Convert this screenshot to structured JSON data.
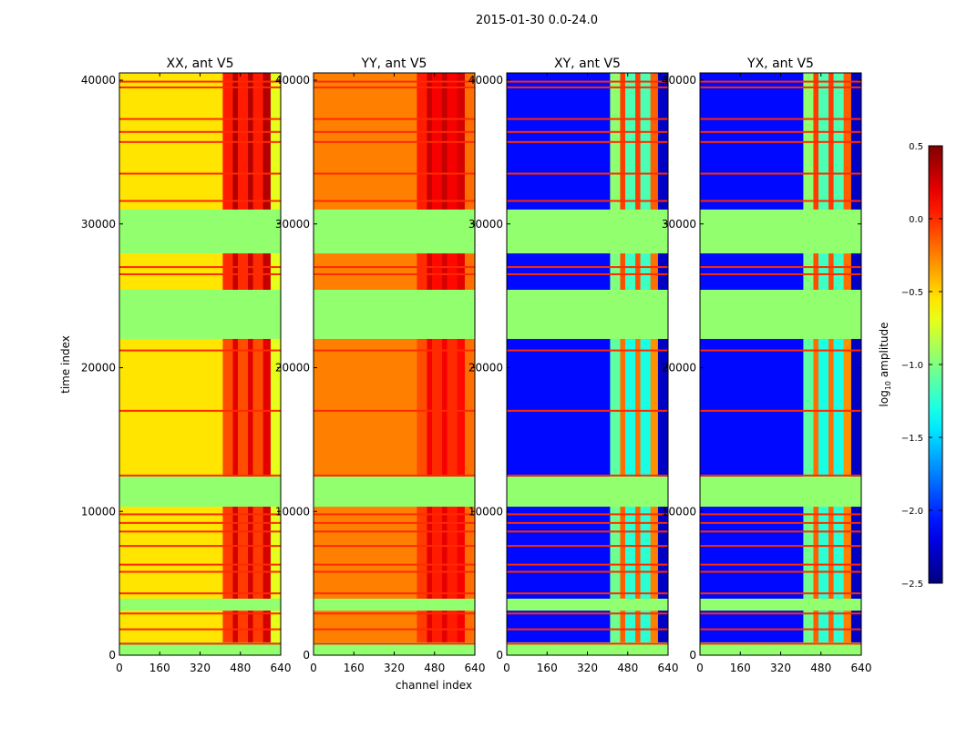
{
  "chart_data": {
    "type": "heatmap",
    "title": "2015-01-30 0.0-24.0",
    "xlabel": "channel index",
    "ylabel": "time index",
    "xlim": [
      0,
      640
    ],
    "ylim": [
      0,
      40500
    ],
    "xticks": [
      0,
      160,
      320,
      480,
      640
    ],
    "yticks": [
      0,
      10000,
      20000,
      30000,
      40000
    ],
    "colorbar": {
      "label_main": "log",
      "label_sub": "10",
      "label_rest": " amplitude",
      "vmin": -2.5,
      "vmax": 0.5,
      "ticks": [
        "0.5",
        "0.0",
        "−0.5",
        "−1.0",
        "−1.5",
        "−2.0",
        "−2.5"
      ],
      "tick_values": [
        0.5,
        0.0,
        -0.5,
        -1.0,
        -1.5,
        -2.0,
        -2.5
      ],
      "colormap": "jet"
    },
    "channel_segments": [
      [
        0,
        410
      ],
      [
        410,
        450
      ],
      [
        450,
        470
      ],
      [
        470,
        510
      ],
      [
        510,
        530
      ],
      [
        530,
        570
      ],
      [
        570,
        600
      ],
      [
        600,
        640
      ]
    ],
    "time_bands": [
      {
        "start": 31000,
        "end": 40500,
        "kind": "data",
        "boost": 0.15
      },
      {
        "start": 27950,
        "end": 31000,
        "kind": "flagged"
      },
      {
        "start": 25420,
        "end": 27950,
        "kind": "data",
        "boost": 0.1
      },
      {
        "start": 22000,
        "end": 25420,
        "kind": "flagged"
      },
      {
        "start": 12425,
        "end": 22000,
        "kind": "data",
        "boost": 0.0
      },
      {
        "start": 10330,
        "end": 12425,
        "kind": "flagged"
      },
      {
        "start": 3930,
        "end": 10330,
        "kind": "data",
        "boost": 0.05
      },
      {
        "start": 3100,
        "end": 3930,
        "kind": "flagged"
      },
      {
        "start": 890,
        "end": 3100,
        "kind": "data",
        "boost": 0.05
      },
      {
        "start": 0,
        "end": 890,
        "kind": "flagged"
      }
    ],
    "flagged_value": -0.95,
    "stripe_times": [
      39900,
      39500,
      37300,
      36400,
      35700,
      33500,
      31600,
      27000,
      26500,
      21200,
      17000,
      12500,
      9800,
      9200,
      8600,
      7600,
      6300,
      5800,
      4300,
      2900,
      1800,
      800
    ],
    "panels": [
      {
        "title": "XX, ant V5",
        "profile": [
          -0.55,
          -0.1,
          0.2,
          -0.1,
          0.2,
          -0.1,
          0.2,
          -0.7
        ],
        "stripe_value": 0.0
      },
      {
        "title": "YY, ant V5",
        "profile": [
          -0.25,
          -0.1,
          0.15,
          0.0,
          0.15,
          0.0,
          0.1,
          -0.2
        ],
        "stripe_value": 0.0
      },
      {
        "title": "XY, ant V5",
        "profile": [
          -2.1,
          -1.1,
          -0.2,
          -1.3,
          -0.2,
          -1.3,
          -0.3,
          -2.3
        ],
        "stripe_value": 0.0
      },
      {
        "title": "YX, ant V5",
        "profile": [
          -2.1,
          -1.1,
          -0.2,
          -1.3,
          -0.2,
          -1.3,
          -0.3,
          -2.3
        ],
        "stripe_value": 0.0
      }
    ]
  }
}
